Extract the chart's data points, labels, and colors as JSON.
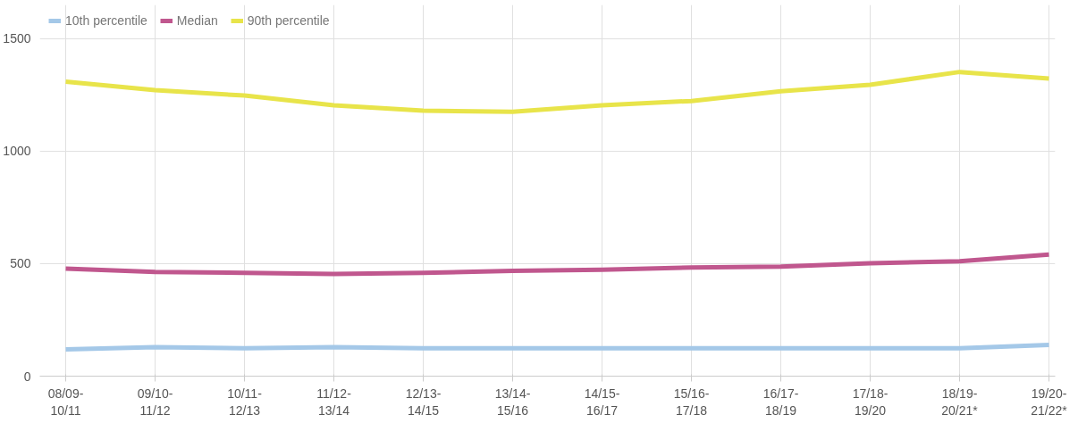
{
  "chart_data": {
    "type": "line",
    "categories": [
      "08/09-\n10/11",
      "09/10-\n11/12",
      "10/11-\n12/13",
      "11/12-\n13/14",
      "12/13-\n14/15",
      "13/14-\n15/16",
      "14/15-\n16/17",
      "15/16-\n17/18",
      "16/17-\n18/19",
      "17/18-\n19/20",
      "18/19-\n20/21*",
      "19/20-\n21/22*"
    ],
    "series": [
      {
        "name": "10th percentile",
        "color": "#a4c8e8",
        "values": [
          119,
          129,
          124,
          129,
          124,
          124,
          124,
          124,
          124,
          124,
          124,
          139
        ]
      },
      {
        "name": "Median",
        "color": "#c0578e",
        "values": [
          478,
          463,
          459,
          454,
          459,
          468,
          473,
          483,
          487,
          502,
          511,
          540
        ]
      },
      {
        "name": "90th percentile",
        "color": "#e8e44a",
        "values": [
          1309,
          1271,
          1247,
          1204,
          1180,
          1175,
          1204,
          1223,
          1266,
          1295,
          1352,
          1323
        ]
      }
    ],
    "ylim": [
      0,
      1650
    ],
    "yticks": [
      0,
      500,
      1000,
      1500
    ],
    "grid": true,
    "legend": "top left",
    "marker": "none",
    "line_style": "solid"
  }
}
